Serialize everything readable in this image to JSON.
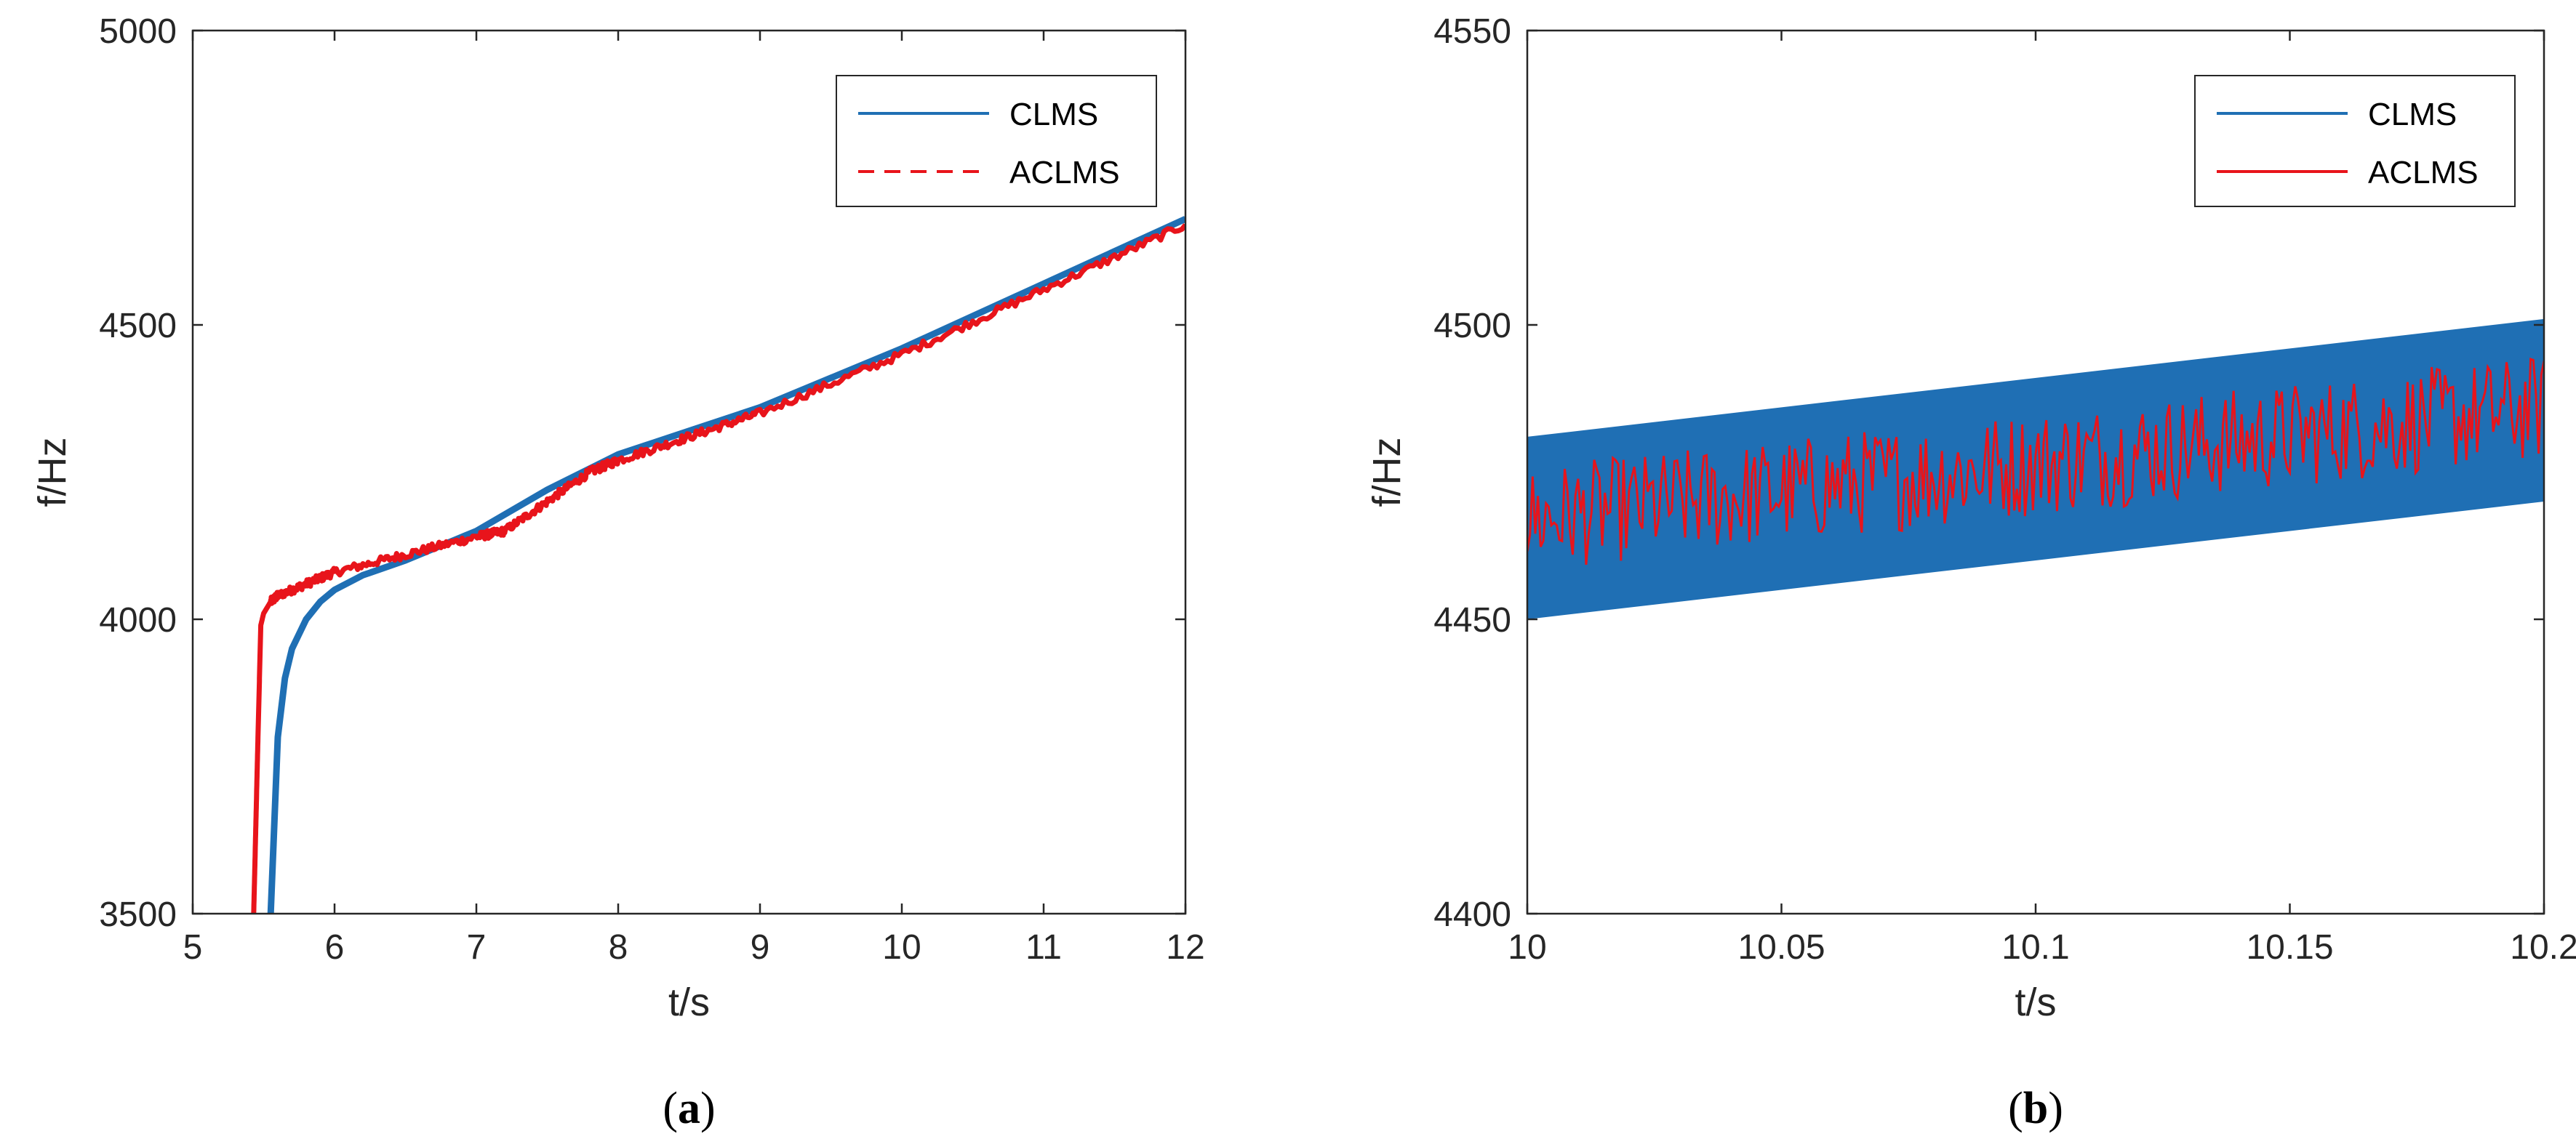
{
  "colors": {
    "clms": "#1f6fb4",
    "aclms": "#e8141b",
    "axis": "#262626"
  },
  "chart_data": [
    {
      "type": "line",
      "caption_letter": "a",
      "xlabel": "t/s",
      "ylabel": "f/Hz",
      "xlim": [
        5,
        12
      ],
      "ylim": [
        3500,
        5000
      ],
      "x_ticks": [
        5,
        6,
        7,
        8,
        9,
        10,
        11,
        12
      ],
      "x_tick_labels": [
        "5",
        "6",
        "7",
        "8",
        "9",
        "10",
        "11",
        "12"
      ],
      "y_ticks": [
        3500,
        4000,
        4500,
        5000
      ],
      "y_tick_labels": [
        "3500",
        "4000",
        "4500",
        "5000"
      ],
      "legend_position": "top-right",
      "grid": false,
      "series": [
        {
          "name": "CLMS",
          "style": "solid",
          "x": [
            5.55,
            5.6,
            5.65,
            5.7,
            5.8,
            5.9,
            6.0,
            6.2,
            6.5,
            7.0,
            7.5,
            8.0,
            8.5,
            9.0,
            10.0,
            11.0,
            12.0
          ],
          "y": [
            3500,
            3800,
            3900,
            3950,
            4000,
            4030,
            4050,
            4075,
            4100,
            4150,
            4220,
            4280,
            4320,
            4360,
            4460,
            4570,
            4680
          ]
        },
        {
          "name": "ACLMS",
          "style": "dashed",
          "x": [
            5.43,
            5.46,
            5.48,
            5.5,
            5.55,
            5.6,
            5.8,
            6.0,
            6.5,
            7.0,
            7.2,
            7.5,
            7.8,
            8.0,
            8.5,
            9.0,
            10.0,
            11.0,
            12.0
          ],
          "y": [
            3500,
            3800,
            3990,
            4010,
            4030,
            4040,
            4060,
            4080,
            4110,
            4140,
            4150,
            4200,
            4250,
            4270,
            4310,
            4350,
            4450,
            4560,
            4670
          ]
        }
      ]
    },
    {
      "type": "line",
      "caption_letter": "b",
      "xlabel": "t/s",
      "ylabel": "f/Hz",
      "xlim": [
        10,
        10.2
      ],
      "ylim": [
        4400,
        4550
      ],
      "x_ticks": [
        10,
        10.05,
        10.1,
        10.15,
        10.2
      ],
      "x_tick_labels": [
        "10",
        "10.05",
        "10.1",
        "10.15",
        "10.2"
      ],
      "y_ticks": [
        4400,
        4450,
        4500,
        4550
      ],
      "y_tick_labels": [
        "4400",
        "4450",
        "4500",
        "4550"
      ],
      "legend_position": "top-right",
      "grid": false,
      "series": [
        {
          "name": "CLMS",
          "style": "band",
          "x": [
            10,
            10.2
          ],
          "y_lower": [
            4450,
            4470
          ],
          "y_upper": [
            4481,
            4501
          ]
        },
        {
          "name": "ACLMS",
          "style": "solid",
          "x": [
            10,
            10.2
          ],
          "y_center": [
            4467,
            4486
          ],
          "noise_amplitude": 9
        }
      ]
    }
  ]
}
